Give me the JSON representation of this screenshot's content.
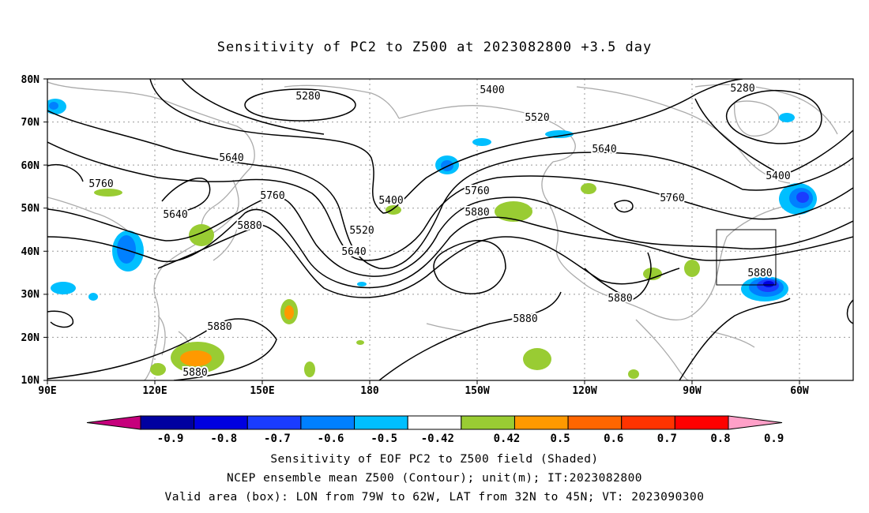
{
  "title": "Sensitivity of PC2 to Z500 at 2023082800 +3.5 day",
  "map": {
    "lat_labels": [
      "80N",
      "70N",
      "60N",
      "50N",
      "40N",
      "30N",
      "20N",
      "10N"
    ],
    "lon_labels": [
      "90E",
      "120E",
      "150E",
      "180",
      "150W",
      "120W",
      "90W",
      "60W"
    ],
    "contour_labels": [
      "5280",
      "5280",
      "5400",
      "5400",
      "5400",
      "5520",
      "5520",
      "5640",
      "5640",
      "5640",
      "5640",
      "5760",
      "5760",
      "5760",
      "5760",
      "5880",
      "5880",
      "5880",
      "5880",
      "5880",
      "5880"
    ],
    "valid_box": {
      "lon_from": "79W",
      "lon_to": "62W",
      "lat_from": "32N",
      "lat_to": "45N"
    }
  },
  "colorbar": {
    "labels": [
      "-0.9",
      "-0.8",
      "-0.7",
      "-0.6",
      "-0.5",
      "-0.42",
      "0.42",
      "0.5",
      "0.6",
      "0.7",
      "0.8",
      "0.9"
    ],
    "colors": [
      "#c6007c",
      "#0000a0",
      "#0000e0",
      "#1a3cff",
      "#0080ff",
      "#00bfff",
      "#ffffff",
      "#99cc33",
      "#ff9900",
      "#ff6600",
      "#ff3300",
      "#ff0000",
      "#ffa0c8"
    ]
  },
  "captions": {
    "line1": "Sensitivity of EOF PC2 to Z500 field (Shaded)",
    "line2": "NCEP ensemble mean Z500 (Contour); unit(m); IT:2023082800",
    "line3": "Valid area (box): LON from 79W to 62W, LAT from 32N to 45N; VT: 2023090300"
  }
}
